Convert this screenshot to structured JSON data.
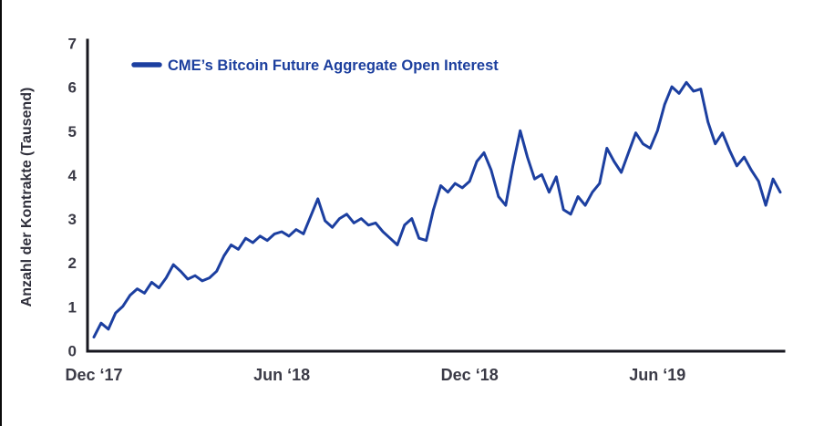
{
  "page": {
    "background": "#ffffff"
  },
  "legend": {
    "label": "CME’s Bitcoin Future Aggregate Open Interest"
  },
  "colors": {
    "line": "#1c3fa0",
    "axis": "#17171f",
    "tick_label": "#3a3a46",
    "legend_text": "#1c3f9e"
  },
  "chart_data": {
    "type": "line",
    "title": "",
    "xlabel": "",
    "ylabel": "Anzahl der Kontrakte (Tausend)",
    "ylim": [
      0,
      7
    ],
    "yticks": [
      0,
      1,
      2,
      3,
      4,
      5,
      6,
      7
    ],
    "xticks": [
      {
        "label": "Dec ‘17",
        "index": 0
      },
      {
        "label": "Jun ‘18",
        "index": 26
      },
      {
        "label": "Dec ‘18",
        "index": 52
      },
      {
        "label": "Jun ‘19",
        "index": 78
      }
    ],
    "x_description": "Weekly samples, Dec 2017 through Oct 2019",
    "grid": false,
    "legend_position": "top-left",
    "series": [
      {
        "name": "CME’s Bitcoin Future Aggregate Open Interest",
        "color": "#1c3fa0",
        "values": [
          0.3,
          0.62,
          0.48,
          0.85,
          1.0,
          1.25,
          1.4,
          1.3,
          1.55,
          1.42,
          1.65,
          1.95,
          1.8,
          1.62,
          1.7,
          1.58,
          1.65,
          1.8,
          2.15,
          2.4,
          2.3,
          2.55,
          2.45,
          2.6,
          2.5,
          2.65,
          2.7,
          2.6,
          2.75,
          2.65,
          3.05,
          3.45,
          2.95,
          2.8,
          3.0,
          3.1,
          2.9,
          3.0,
          2.85,
          2.9,
          2.7,
          2.55,
          2.4,
          2.85,
          3.0,
          2.55,
          2.5,
          3.2,
          3.75,
          3.6,
          3.8,
          3.7,
          3.85,
          4.3,
          4.5,
          4.1,
          3.5,
          3.3,
          4.2,
          5.0,
          4.4,
          3.9,
          4.0,
          3.6,
          3.95,
          3.2,
          3.1,
          3.5,
          3.3,
          3.6,
          3.8,
          4.6,
          4.3,
          4.05,
          4.5,
          4.95,
          4.7,
          4.6,
          5.0,
          5.6,
          6.0,
          5.85,
          6.1,
          5.9,
          5.95,
          5.2,
          4.7,
          4.95,
          4.55,
          4.2,
          4.4,
          4.1,
          3.85,
          3.3,
          3.9,
          3.6
        ]
      }
    ]
  }
}
